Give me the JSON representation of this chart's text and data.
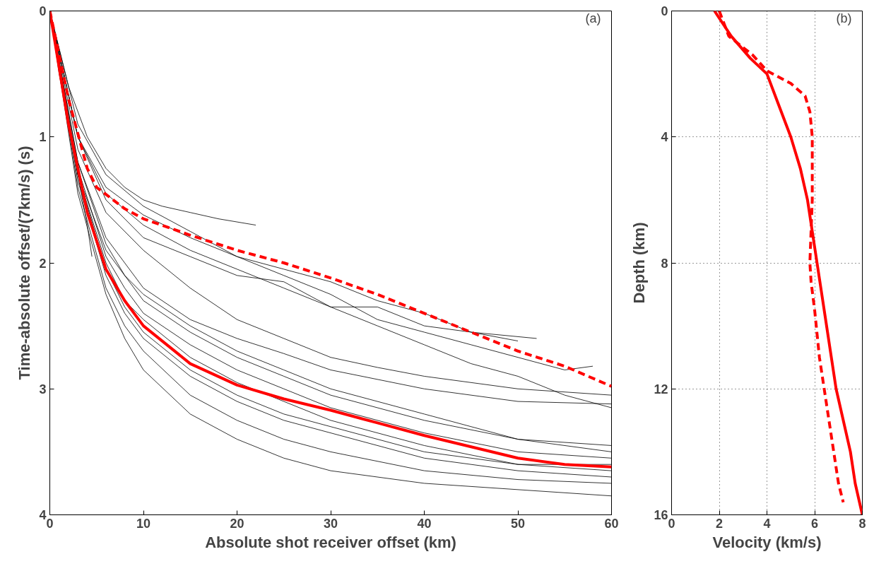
{
  "chart_data": [
    {
      "type": "line",
      "xlabel": "Absolute shot receiver offset (km)",
      "ylabel": "Time-absolute offset/(7km/s) (s)",
      "annotations": [
        "(a)"
      ],
      "xlim": [
        0,
        60
      ],
      "ylim": [
        4,
        0
      ],
      "xticks": [
        0,
        10,
        20,
        30,
        40,
        50,
        60
      ],
      "yticks": [
        0,
        1,
        2,
        3,
        4
      ],
      "grid": false,
      "series": [
        {
          "color": "#000000",
          "x": [
            0,
            2,
            4,
            6,
            8,
            10,
            12,
            15,
            18,
            22
          ],
          "values": [
            0,
            0.6,
            1.0,
            1.25,
            1.4,
            1.5,
            1.55,
            1.6,
            1.65,
            1.7
          ]
        },
        {
          "color": "#000000",
          "x": [
            0,
            3,
            6,
            10,
            15,
            20,
            25,
            30,
            35,
            40,
            45,
            52
          ],
          "values": [
            0,
            0.9,
            1.3,
            1.55,
            1.75,
            1.95,
            2.05,
            2.15,
            2.3,
            2.4,
            2.55,
            2.6
          ]
        },
        {
          "color": "#000000",
          "x": [
            0,
            3,
            6,
            10,
            15,
            20,
            25,
            30,
            35,
            40,
            45,
            50,
            55,
            58
          ],
          "values": [
            0,
            1.0,
            1.4,
            1.62,
            1.8,
            1.95,
            2.1,
            2.25,
            2.45,
            2.55,
            2.65,
            2.75,
            2.85,
            2.82
          ]
        },
        {
          "color": "#000000",
          "x": [
            0,
            3,
            6,
            10,
            15,
            20,
            25,
            30,
            35,
            40,
            45,
            50,
            55,
            60
          ],
          "values": [
            0,
            1.0,
            1.45,
            1.7,
            1.9,
            2.05,
            2.2,
            2.35,
            2.5,
            2.65,
            2.8,
            2.9,
            3.05,
            3.15
          ]
        },
        {
          "color": "#000000",
          "x": [
            0,
            3,
            6,
            10,
            15,
            20,
            25,
            30,
            35,
            40,
            45,
            50
          ],
          "values": [
            0,
            1.0,
            1.5,
            1.8,
            1.95,
            2.1,
            2.15,
            2.35,
            2.35,
            2.5,
            2.55,
            2.62
          ]
        },
        {
          "color": "#000000",
          "x": [
            0,
            3,
            6,
            10,
            15,
            20,
            25,
            30,
            35,
            40,
            50,
            60
          ],
          "values": [
            0,
            1.1,
            1.6,
            1.9,
            2.2,
            2.45,
            2.6,
            2.75,
            2.83,
            2.9,
            3.0,
            3.05
          ]
        },
        {
          "color": "#000000",
          "x": [
            0,
            3,
            6,
            10,
            15,
            20,
            25,
            30,
            40,
            50,
            60
          ],
          "values": [
            0,
            1.2,
            1.8,
            2.2,
            2.45,
            2.6,
            2.72,
            2.85,
            3.0,
            3.1,
            3.12
          ]
        },
        {
          "color": "#000000",
          "x": [
            0,
            3,
            6,
            8,
            10,
            15,
            20,
            25,
            30,
            40,
            50,
            60
          ],
          "values": [
            0,
            1.3,
            1.9,
            2.1,
            2.3,
            2.55,
            2.75,
            2.9,
            3.05,
            3.25,
            3.4,
            3.45
          ]
        },
        {
          "color": "#000000",
          "x": [
            0,
            3,
            6,
            8,
            10,
            15,
            20,
            25,
            30,
            40,
            50,
            60
          ],
          "values": [
            0,
            1.2,
            1.85,
            2.1,
            2.25,
            2.5,
            2.7,
            2.85,
            3.0,
            3.2,
            3.4,
            3.5
          ]
        },
        {
          "color": "#000000",
          "x": [
            0,
            3,
            6,
            8,
            10,
            15,
            20,
            25,
            30,
            40,
            50,
            60
          ],
          "values": [
            0,
            1.3,
            2.0,
            2.3,
            2.45,
            2.75,
            2.95,
            3.1,
            3.25,
            3.45,
            3.6,
            3.6
          ]
        },
        {
          "color": "#000000",
          "x": [
            0,
            3,
            6,
            8,
            10,
            15,
            20,
            25,
            30,
            40,
            50,
            60
          ],
          "values": [
            0,
            1.35,
            2.1,
            2.4,
            2.6,
            2.9,
            3.1,
            3.25,
            3.35,
            3.55,
            3.65,
            3.7
          ]
        },
        {
          "color": "#000000",
          "x": [
            0,
            3,
            6,
            8,
            10,
            15,
            20,
            25,
            30,
            40,
            50,
            60
          ],
          "values": [
            0,
            1.4,
            2.2,
            2.5,
            2.7,
            3.05,
            3.25,
            3.4,
            3.5,
            3.65,
            3.72,
            3.75
          ]
        },
        {
          "color": "#000000",
          "x": [
            0,
            3,
            6,
            8,
            10,
            15,
            20,
            25,
            30,
            40,
            50,
            60
          ],
          "values": [
            0,
            1.45,
            2.25,
            2.6,
            2.85,
            3.2,
            3.4,
            3.55,
            3.65,
            3.75,
            3.8,
            3.85
          ]
        },
        {
          "color": "#000000",
          "x": [
            0,
            3,
            6,
            8,
            10,
            15,
            20,
            25,
            30,
            40,
            50,
            60
          ],
          "values": [
            0,
            1.3,
            2.05,
            2.35,
            2.55,
            2.85,
            3.05,
            3.2,
            3.3,
            3.5,
            3.6,
            3.65
          ]
        },
        {
          "color": "#000000",
          "x": [
            0,
            3,
            6,
            8,
            10,
            15,
            20,
            25,
            30,
            40,
            50,
            60
          ],
          "values": [
            0,
            1.25,
            1.95,
            2.2,
            2.4,
            2.65,
            2.85,
            3.0,
            3.15,
            3.35,
            3.5,
            3.55
          ]
        },
        {
          "color": "#000000",
          "x": [
            0,
            1,
            2,
            3,
            4,
            4.5
          ],
          "values": [
            0,
            0.5,
            0.9,
            1.3,
            1.7,
            1.95
          ]
        },
        {
          "color": "#ff0000",
          "line_style": "solid",
          "x": [
            0,
            2,
            4,
            6,
            8,
            10,
            15,
            20,
            25,
            30,
            35,
            40,
            45,
            50,
            55,
            60
          ],
          "values": [
            0,
            0.9,
            1.6,
            2.05,
            2.3,
            2.5,
            2.8,
            2.97,
            3.08,
            3.17,
            3.27,
            3.37,
            3.46,
            3.55,
            3.6,
            3.62
          ]
        },
        {
          "color": "#ff0000",
          "line_style": "dashed",
          "x": [
            0,
            2,
            4,
            5,
            8,
            10,
            15,
            20,
            25,
            30,
            35,
            40,
            45,
            50,
            55,
            60
          ],
          "values": [
            0,
            0.7,
            1.25,
            1.4,
            1.57,
            1.65,
            1.78,
            1.9,
            2.0,
            2.12,
            2.25,
            2.4,
            2.55,
            2.7,
            2.82,
            2.98
          ]
        }
      ]
    },
    {
      "type": "line",
      "xlabel": "Velocity (km/s)",
      "ylabel": "Depth (km)",
      "annotations": [
        "(b)"
      ],
      "xlim": [
        0,
        8
      ],
      "ylim": [
        16,
        0
      ],
      "xticks": [
        0,
        2,
        4,
        6,
        8
      ],
      "yticks": [
        0,
        4,
        8,
        12,
        16
      ],
      "grid": true,
      "series": [
        {
          "color": "#ff0000",
          "line_style": "solid",
          "x": [
            1.8,
            2.5,
            3.3,
            4,
            4.5,
            5,
            5.4,
            5.7,
            5.9,
            6.1,
            6.3,
            6.5,
            6.7,
            6.9,
            7.2,
            7.5,
            7.7,
            8
          ],
          "values": [
            0,
            0.8,
            1.5,
            2,
            3,
            4,
            5,
            6,
            7,
            8,
            9,
            10,
            11,
            12,
            13,
            14,
            15,
            16
          ]
        },
        {
          "color": "#ff0000",
          "line_style": "dashed",
          "x": [
            2,
            2.4,
            3.4,
            4,
            5,
            5.6,
            5.8,
            5.9,
            5.9,
            5.9,
            5.85,
            5.8,
            5.85,
            6.0,
            6.2,
            6.4,
            6.6,
            6.8,
            7.0,
            7.2
          ],
          "values": [
            0,
            0.8,
            1.4,
            1.9,
            2.3,
            2.7,
            3.2,
            4,
            5,
            6,
            7,
            8,
            8.6,
            9.5,
            11,
            12,
            13,
            14,
            15,
            15.6
          ]
        }
      ]
    }
  ]
}
